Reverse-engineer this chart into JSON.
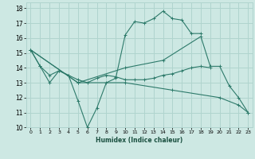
{
  "xlabel": "Humidex (Indice chaleur)",
  "background_color": "#cde8e3",
  "grid_color": "#b0d4ce",
  "line_color": "#2d7a6a",
  "xlim": [
    -0.5,
    23.5
  ],
  "ylim": [
    10,
    18.4
  ],
  "xticks": [
    0,
    1,
    2,
    3,
    4,
    5,
    6,
    7,
    8,
    9,
    10,
    11,
    12,
    13,
    14,
    15,
    16,
    17,
    18,
    19,
    20,
    21,
    22,
    23
  ],
  "yticks": [
    10,
    11,
    12,
    13,
    14,
    15,
    16,
    17,
    18
  ],
  "series": [
    {
      "x": [
        0,
        1,
        2,
        3,
        4,
        5,
        6,
        7,
        8,
        9,
        10,
        11,
        12,
        13,
        14,
        15,
        16,
        17,
        18
      ],
      "y": [
        15.2,
        14.1,
        13.0,
        13.8,
        13.5,
        11.8,
        10.0,
        11.3,
        13.0,
        13.3,
        16.2,
        17.1,
        17.0,
        17.3,
        17.8,
        17.3,
        17.2,
        16.3,
        16.3
      ]
    },
    {
      "x": [
        0,
        5,
        10,
        14,
        18,
        19,
        20,
        21,
        22,
        23
      ],
      "y": [
        15.2,
        13.0,
        14.0,
        14.5,
        16.1,
        14.1,
        14.1,
        12.8,
        12.0,
        11.0
      ]
    },
    {
      "x": [
        0,
        1,
        2,
        3,
        4,
        5,
        6,
        7,
        8,
        9,
        10,
        11,
        12,
        13,
        14,
        15,
        16,
        17,
        18,
        19
      ],
      "y": [
        15.2,
        14.1,
        13.5,
        13.8,
        13.5,
        13.2,
        13.0,
        13.3,
        13.5,
        13.4,
        13.2,
        13.2,
        13.2,
        13.3,
        13.5,
        13.6,
        13.8,
        14.0,
        14.1,
        14.0
      ]
    },
    {
      "x": [
        0,
        5,
        10,
        15,
        20,
        22,
        23
      ],
      "y": [
        15.2,
        13.0,
        13.0,
        12.5,
        12.0,
        11.5,
        11.0
      ]
    }
  ]
}
